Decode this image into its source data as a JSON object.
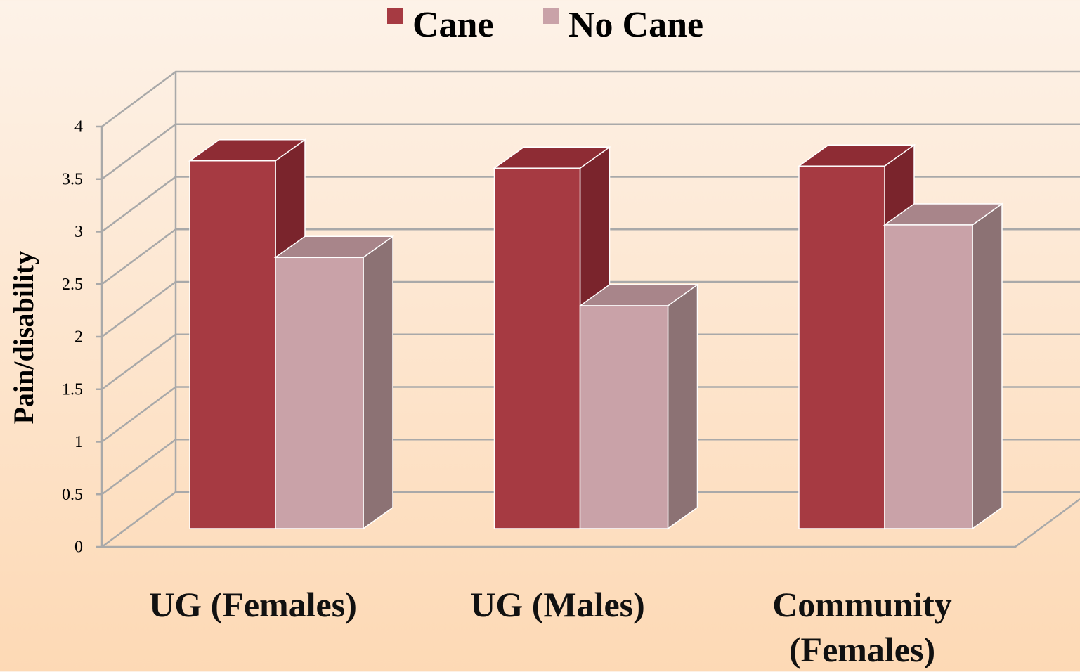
{
  "chart_data": {
    "type": "bar3d",
    "y_label": "Pain/disability",
    "categories": [
      "UG (Females)",
      "UG (Males)",
      "Community (Females)"
    ],
    "series": [
      {
        "name": "Cane",
        "color": "#a63a42",
        "side_color": "#7a242c",
        "top_color": "#8e2c34",
        "values": [
          3.5,
          3.43,
          3.45
        ]
      },
      {
        "name": "No Cane",
        "color": "#c9a2a8",
        "side_color": "#8c7274",
        "top_color": "#a8858a",
        "values": [
          2.58,
          2.12,
          2.89
        ]
      }
    ],
    "ylim": [
      0,
      4
    ],
    "yticks": [
      0,
      0.5,
      1,
      1.5,
      2,
      2.5,
      3,
      3.5,
      4
    ],
    "grid": true,
    "legend": "top"
  }
}
